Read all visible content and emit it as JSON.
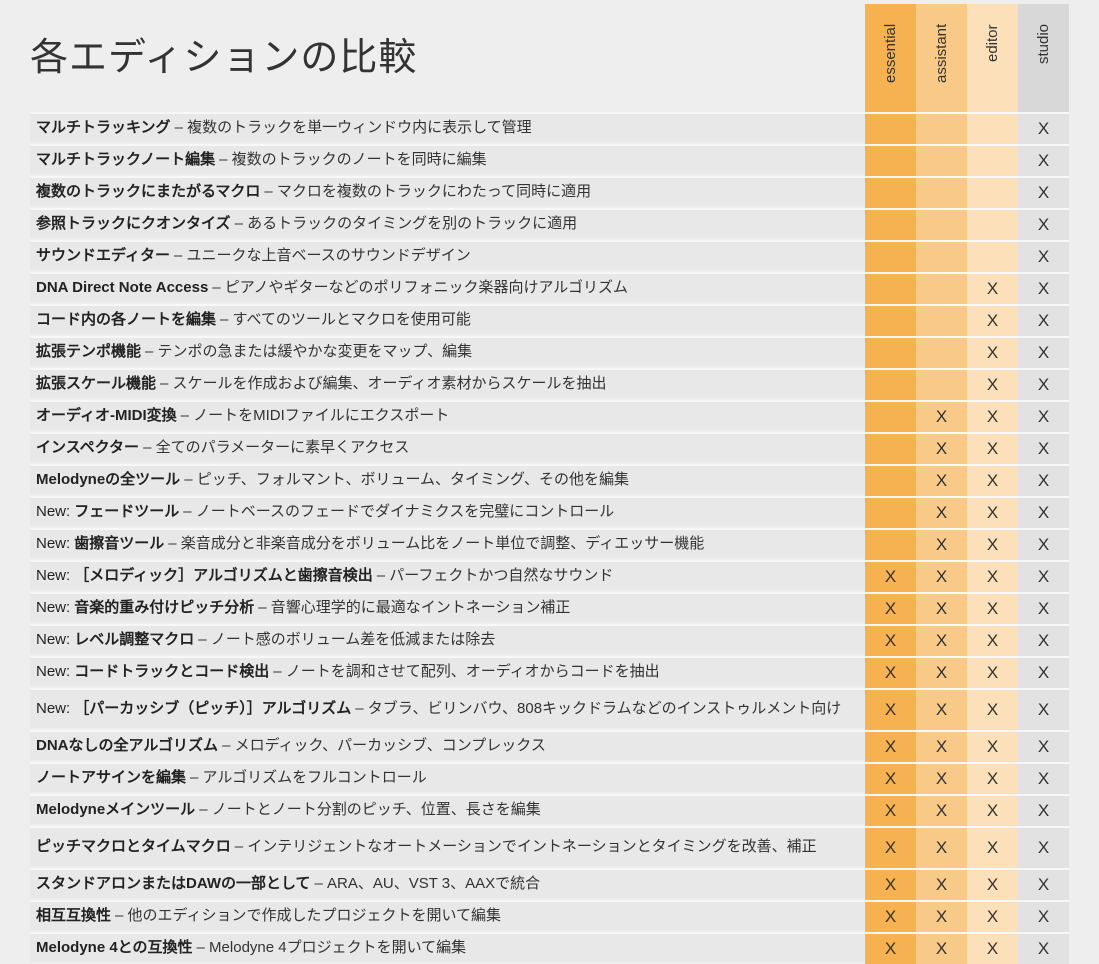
{
  "title": "各エディションの比較",
  "editions": [
    "essential",
    "assistant",
    "editor",
    "studio"
  ],
  "colors": {
    "essential": "#f6b250",
    "assistant": "#f8c987",
    "editor": "#fce0ba",
    "studio": "#d8d8d8",
    "row_background": "#e8e8e8"
  },
  "mark_symbol": "X",
  "rows": [
    {
      "prefix": "",
      "name": "マルチトラッキング",
      "desc": "– 複数のトラックを単一ウィンドウ内に表示して管理",
      "marks": [
        false,
        false,
        false,
        true
      ]
    },
    {
      "prefix": "",
      "name": "マルチトラックノート編集",
      "desc": "– 複数のトラックのノートを同時に編集",
      "marks": [
        false,
        false,
        false,
        true
      ]
    },
    {
      "prefix": "",
      "name": "複数のトラックにまたがるマクロ",
      "desc": "– マクロを複数のトラックにわたって同時に適用",
      "marks": [
        false,
        false,
        false,
        true
      ]
    },
    {
      "prefix": "",
      "name": "参照トラックにクオンタイズ",
      "desc": "– あるトラックのタイミングを別のトラックに適用",
      "marks": [
        false,
        false,
        false,
        true
      ]
    },
    {
      "prefix": "",
      "name": "サウンドエディター",
      "desc": "– ユニークな上音ベースのサウンドデザイン",
      "marks": [
        false,
        false,
        false,
        true
      ]
    },
    {
      "prefix": "",
      "name": "DNA Direct Note Access",
      "desc": "– ピアノやギターなどのポリフォニック楽器向けアルゴリズム",
      "marks": [
        false,
        false,
        true,
        true
      ]
    },
    {
      "prefix": "",
      "name": "コード内の各ノートを編集",
      "desc": "– すべてのツールとマクロを使用可能",
      "marks": [
        false,
        false,
        true,
        true
      ]
    },
    {
      "prefix": "",
      "name": "拡張テンポ機能",
      "desc": "– テンポの急または緩やかな変更をマップ、編集",
      "marks": [
        false,
        false,
        true,
        true
      ]
    },
    {
      "prefix": "",
      "name": "拡張スケール機能",
      "desc": "– スケールを作成および編集、オーディオ素材からスケールを抽出",
      "marks": [
        false,
        false,
        true,
        true
      ]
    },
    {
      "prefix": "",
      "name": "オーディオ-MIDI変換",
      "desc": "– ノートをMIDIファイルにエクスポート",
      "marks": [
        false,
        true,
        true,
        true
      ]
    },
    {
      "prefix": "",
      "name": "インスペクター",
      "desc": "– 全てのパラメーターに素早くアクセス",
      "marks": [
        false,
        true,
        true,
        true
      ]
    },
    {
      "prefix": "",
      "name": "Melodyneの全ツール",
      "desc": "– ピッチ、フォルマント、ボリューム、タイミング、その他を編集",
      "marks": [
        false,
        true,
        true,
        true
      ]
    },
    {
      "prefix": "New:",
      "name": "フェードツール",
      "desc": "– ノートベースのフェードでダイナミクスを完璧にコントロール",
      "marks": [
        false,
        true,
        true,
        true
      ]
    },
    {
      "prefix": "New:",
      "name": "歯擦音ツール",
      "desc": "– 楽音成分と非楽音成分をボリューム比をノート単位で調整、ディエッサー機能",
      "marks": [
        false,
        true,
        true,
        true
      ]
    },
    {
      "prefix": "New:",
      "name": "［メロディック］アルゴリズムと歯擦音検出",
      "desc": "– パーフェクトかつ自然なサウンド",
      "marks": [
        true,
        true,
        true,
        true
      ]
    },
    {
      "prefix": "New:",
      "name": "音楽的重み付けピッチ分析",
      "desc": "– 音響心理学的に最適なイントネーション補正",
      "marks": [
        true,
        true,
        true,
        true
      ]
    },
    {
      "prefix": "New:",
      "name": "レベル調整マクロ",
      "desc": "– ノート感のボリューム差を低減または除去",
      "marks": [
        true,
        true,
        true,
        true
      ]
    },
    {
      "prefix": "New:",
      "name": "コードトラックとコード検出",
      "desc": "– ノートを調和させて配列、オーディオからコードを抽出",
      "marks": [
        true,
        true,
        true,
        true
      ]
    },
    {
      "prefix": "New:",
      "name": "［パーカッシブ（ピッチ）］アルゴリズム",
      "desc": "– タブラ、ビリンバウ、808キックドラムなどのインストゥルメント向け",
      "marks": [
        true,
        true,
        true,
        true
      ],
      "tall": true
    },
    {
      "prefix": "",
      "name": "DNAなしの全アルゴリズム",
      "desc": "– メロディック、パーカッシブ、コンプレックス",
      "marks": [
        true,
        true,
        true,
        true
      ]
    },
    {
      "prefix": "",
      "name": "ノートアサインを編集",
      "desc": "– アルゴリズムをフルコントロール",
      "marks": [
        true,
        true,
        true,
        true
      ]
    },
    {
      "prefix": "",
      "name": "Melodyneメインツール",
      "desc": "– ノートとノート分割のピッチ、位置、長さを編集",
      "marks": [
        true,
        true,
        true,
        true
      ]
    },
    {
      "prefix": "",
      "name": "ピッチマクロとタイムマクロ",
      "desc": "– インテリジェントなオートメーションでイントネーションとタイミングを改善、補正",
      "marks": [
        true,
        true,
        true,
        true
      ],
      "tall": true
    },
    {
      "prefix": "",
      "name": "スタンドアロンまたはDAWの一部として",
      "desc": "– ARA、AU、VST 3、AAXで統合",
      "marks": [
        true,
        true,
        true,
        true
      ]
    },
    {
      "prefix": "",
      "name": "相互互換性",
      "desc": "– 他のエディションで作成したプロジェクトを開いて編集",
      "marks": [
        true,
        true,
        true,
        true
      ]
    },
    {
      "prefix": "",
      "name": "Melodyne 4との互換性",
      "desc": "– Melodyne 4プロジェクトを開いて編集",
      "marks": [
        true,
        true,
        true,
        true
      ]
    }
  ]
}
